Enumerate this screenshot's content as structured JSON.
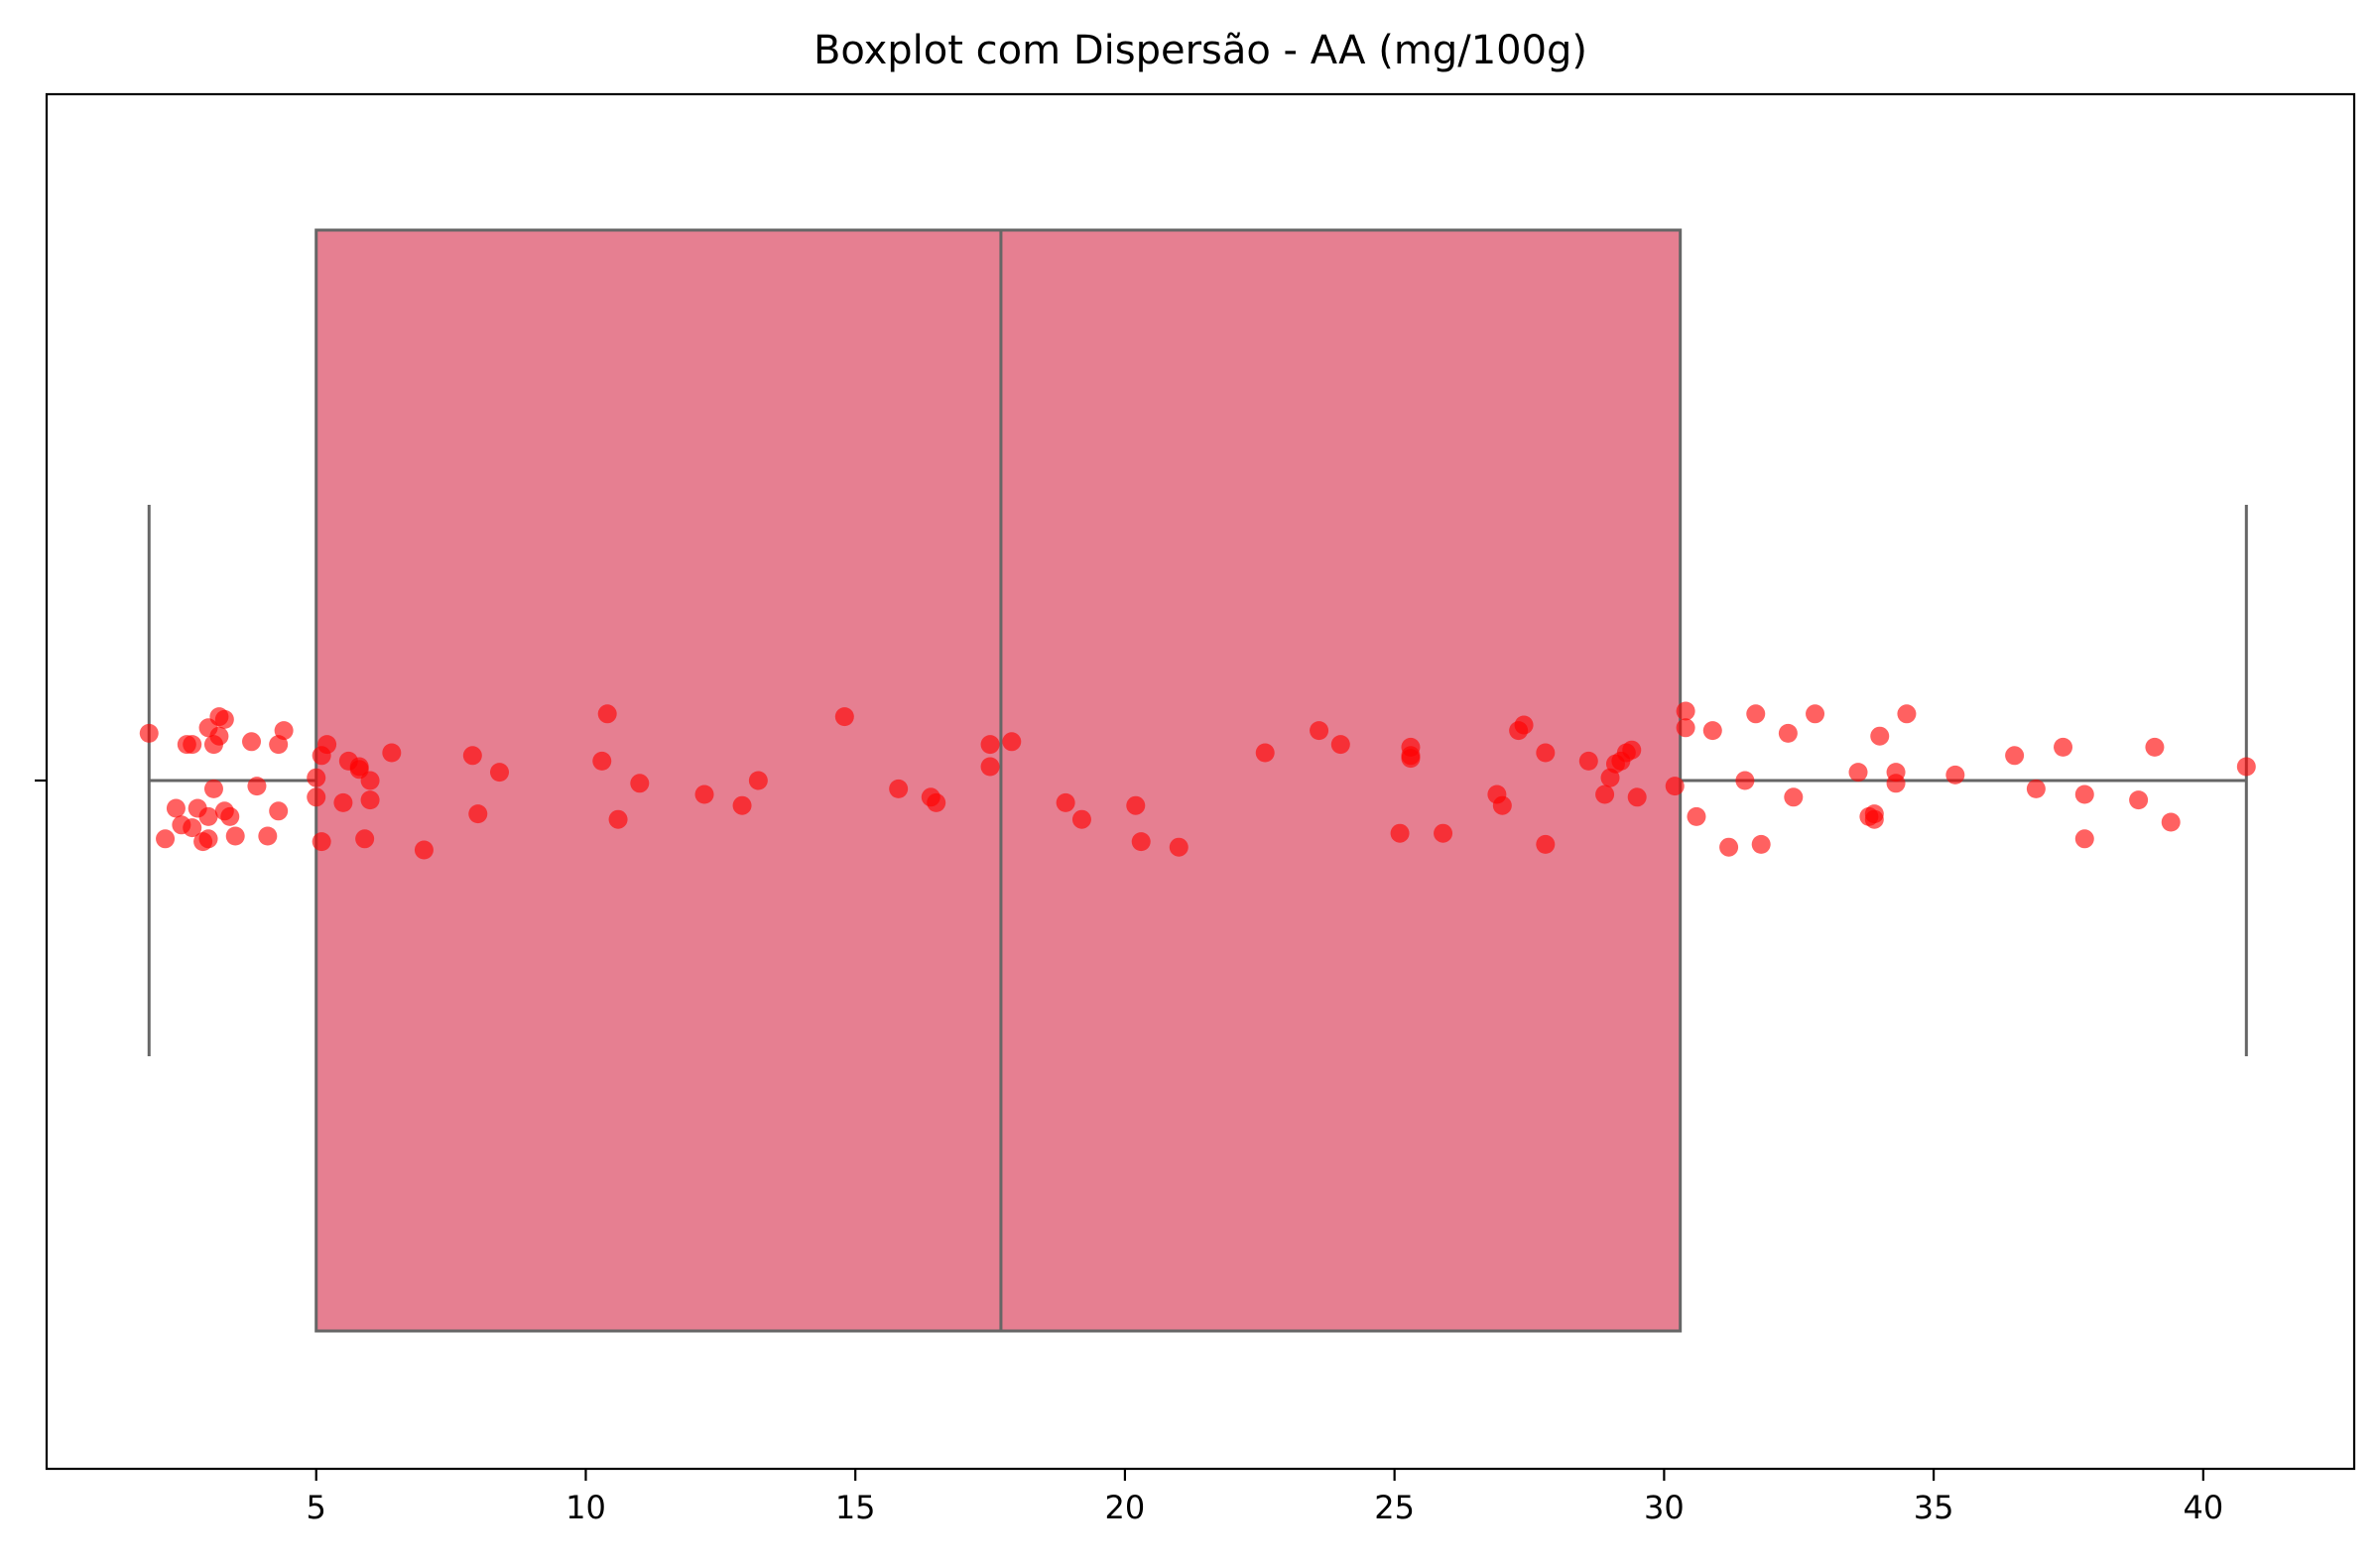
{
  "chart_data": {
    "type": "boxplot",
    "title": "Boxplot com Dispersão - AA (mg/100g)",
    "xlabel": "",
    "ylabel": "",
    "xlim": [
      0.0,
      42.8
    ],
    "xticks": [
      5,
      10,
      15,
      20,
      25,
      30,
      35,
      40
    ],
    "box": {
      "whisker_low": 1.9,
      "q1": 5.0,
      "median": 17.7,
      "q3": 30.3,
      "whisker_high": 40.8,
      "color": "#e67f91",
      "line_color": "#666666"
    },
    "points": {
      "color": "#ff0000",
      "opacity": 0.62,
      "values": [
        1.9,
        2.2,
        2.4,
        2.5,
        2.6,
        2.7,
        2.7,
        2.8,
        2.9,
        3.0,
        3.0,
        3.0,
        3.1,
        3.1,
        3.2,
        3.2,
        3.3,
        3.3,
        3.4,
        3.5,
        3.8,
        3.9,
        4.1,
        4.3,
        4.3,
        4.4,
        5.0,
        5.0,
        5.1,
        5.1,
        5.2,
        5.5,
        5.6,
        5.8,
        5.8,
        5.9,
        6.0,
        6.0,
        6.4,
        7.0,
        7.9,
        8.0,
        8.4,
        10.3,
        10.4,
        10.6,
        11.0,
        12.2,
        12.9,
        13.2,
        14.8,
        15.8,
        16.4,
        16.5,
        17.5,
        17.5,
        17.9,
        18.9,
        19.2,
        20.2,
        20.3,
        21.0,
        22.6,
        23.6,
        24.0,
        25.1,
        25.3,
        25.3,
        25.3,
        25.9,
        26.9,
        27.0,
        27.3,
        27.4,
        27.8,
        27.8,
        28.6,
        28.9,
        29.0,
        29.1,
        29.2,
        29.3,
        29.4,
        29.5,
        30.2,
        30.4,
        30.4,
        30.6,
        30.9,
        31.2,
        31.5,
        31.7,
        31.8,
        32.3,
        32.4,
        32.8,
        33.6,
        33.8,
        33.9,
        33.9,
        34.0,
        34.3,
        34.3,
        34.5,
        35.4,
        36.5,
        36.9,
        37.4,
        37.8,
        37.8,
        38.8,
        39.1,
        39.4,
        40.8
      ],
      "jitter": [
        0.17,
        -0.21,
        -0.1,
        -0.16,
        0.13,
        -0.17,
        0.13,
        -0.1,
        -0.22,
        -0.21,
        -0.13,
        0.19,
        0.13,
        -0.03,
        0.16,
        0.23,
        0.22,
        -0.11,
        -0.13,
        -0.2,
        0.14,
        -0.02,
        -0.2,
        0.13,
        -0.11,
        0.18,
        0.01,
        -0.06,
        0.09,
        -0.22,
        0.13,
        -0.08,
        0.07,
        0.05,
        0.04,
        -0.21,
        0.0,
        -0.07,
        0.1,
        -0.25,
        0.09,
        -0.12,
        0.03,
        0.07,
        0.24,
        -0.14,
        -0.01,
        -0.05,
        -0.09,
        0.0,
        0.23,
        -0.03,
        -0.06,
        -0.08,
        0.05,
        0.13,
        0.14,
        -0.08,
        -0.14,
        -0.09,
        -0.22,
        -0.24,
        0.1,
        0.18,
        0.13,
        -0.19,
        0.08,
        0.09,
        0.12,
        -0.19,
        -0.05,
        -0.09,
        0.18,
        0.2,
        0.1,
        -0.23,
        0.07,
        -0.05,
        0.01,
        0.06,
        0.07,
        0.1,
        0.11,
        -0.06,
        -0.02,
        0.19,
        0.25,
        -0.13,
        0.18,
        -0.24,
        0.0,
        0.24,
        -0.23,
        0.17,
        -0.06,
        0.24,
        0.03,
        -0.13,
        -0.12,
        -0.14,
        0.16,
        -0.01,
        0.03,
        0.24,
        0.02,
        0.09,
        -0.03,
        0.12,
        -0.05,
        -0.21,
        -0.07,
        0.12,
        -0.15,
        0.05
      ]
    }
  }
}
